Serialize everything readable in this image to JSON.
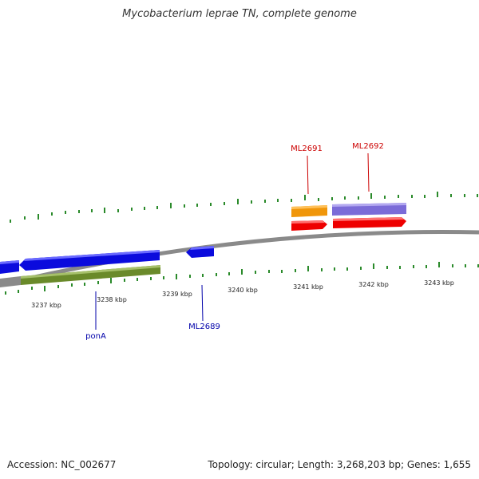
{
  "title": "Mycobacterium leprae TN, complete genome",
  "footer": {
    "accession": "Accession: NC_002677",
    "summary": "Topology: circular; Length: 3,268,203 bp; Genes: 1,655"
  },
  "scale_labels": [
    "3237 kbp",
    "3238 kbp",
    "3239 kbp",
    "3240 kbp",
    "3241 kbp",
    "3242 kbp",
    "3243 kbp"
  ],
  "gene_labels": [
    {
      "name": "ML2691",
      "color": "#cc0000"
    },
    {
      "name": "ML2692",
      "color": "#cc0000"
    },
    {
      "name": "ponA",
      "color": "#0000aa"
    },
    {
      "name": "ML2689",
      "color": "#0000aa"
    }
  ],
  "colors": {
    "backbone": "#8a8a8a",
    "tick": "#2a8a2a",
    "cds": "#0b0bdd",
    "gene_green": "#6a8a2a",
    "rna_orange": "#f0960a",
    "feature_purple": "#7b6bd8",
    "gene_red": "#ee0000"
  }
}
